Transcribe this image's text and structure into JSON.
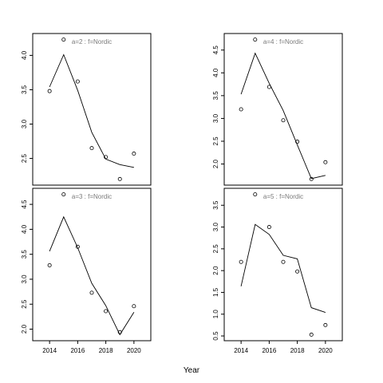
{
  "chart_data": {
    "type": "scatter",
    "xlabel": "Year",
    "panels": [
      {
        "title": "a=2  :  f=Nordic",
        "x": [
          2014,
          2015,
          2016,
          2017,
          2018,
          2019,
          2020
        ],
        "points": [
          3.48,
          4.23,
          3.62,
          2.65,
          2.52,
          2.2,
          2.57
        ],
        "fit": [
          3.54,
          4.01,
          3.49,
          2.88,
          2.49,
          2.41,
          2.37
        ],
        "ylim": [
          2.2,
          4.23
        ],
        "yticks": [
          "2.5",
          "3.0",
          "3.5",
          "4.0"
        ],
        "yticks_values": [
          2.5,
          3.0,
          3.5,
          4.0
        ],
        "xticks": [],
        "xlim": [
          2012.8,
          2021.2
        ]
      },
      {
        "title": "a=4  :  f=Nordic",
        "x": [
          2014,
          2015,
          2016,
          2017,
          2018,
          2019,
          2020
        ],
        "points": [
          3.2,
          4.73,
          3.69,
          2.96,
          2.49,
          1.67,
          2.04
        ],
        "fit": [
          3.53,
          4.43,
          3.77,
          3.17,
          2.42,
          1.68,
          1.75
        ],
        "ylim": [
          1.67,
          4.73
        ],
        "yticks": [
          "2.0",
          "2.5",
          "3.0",
          "3.5",
          "4.0",
          "4.5"
        ],
        "yticks_values": [
          2.0,
          2.5,
          3.0,
          3.5,
          4.0,
          4.5
        ],
        "xticks": [],
        "xlim": [
          2012.8,
          2021.2
        ]
      },
      {
        "title": "a=3  :  f=Nordic",
        "x": [
          2014,
          2015,
          2016,
          2017,
          2018,
          2019,
          2020
        ],
        "points": [
          3.28,
          4.7,
          3.65,
          2.73,
          2.36,
          1.94,
          2.46
        ],
        "fit": [
          3.56,
          4.25,
          3.63,
          2.92,
          2.47,
          1.89,
          2.34
        ],
        "ylim": [
          1.89,
          4.7
        ],
        "yticks": [
          "2.0",
          "2.5",
          "3.0",
          "3.5",
          "4.0",
          "4.5"
        ],
        "yticks_values": [
          2.0,
          2.5,
          3.0,
          3.5,
          4.0,
          4.5
        ],
        "xticks": [
          "2014",
          "2016",
          "2018",
          "2020"
        ],
        "xticks_values": [
          2014,
          2016,
          2018,
          2020
        ],
        "xlim": [
          2012.8,
          2021.2
        ]
      },
      {
        "title": "a=5  :  f=Nordic",
        "x": [
          2014,
          2015,
          2016,
          2017,
          2018,
          2019,
          2020
        ],
        "points": [
          2.2,
          3.75,
          3.0,
          2.2,
          1.98,
          0.53,
          0.75
        ],
        "fit": [
          1.64,
          3.06,
          2.83,
          2.35,
          2.27,
          1.15,
          1.04
        ],
        "ylim": [
          0.53,
          3.75
        ],
        "yticks": [
          "0.5",
          "1.0",
          "1.5",
          "2.0",
          "2.5",
          "3.0",
          "3.5"
        ],
        "yticks_values": [
          0.5,
          1.0,
          1.5,
          2.0,
          2.5,
          3.0,
          3.5
        ],
        "xticks": [
          "2014",
          "2016",
          "2018",
          "2020"
        ],
        "xticks_values": [
          2014,
          2016,
          2018,
          2020
        ],
        "xlim": [
          2012.8,
          2021.2
        ]
      }
    ]
  }
}
